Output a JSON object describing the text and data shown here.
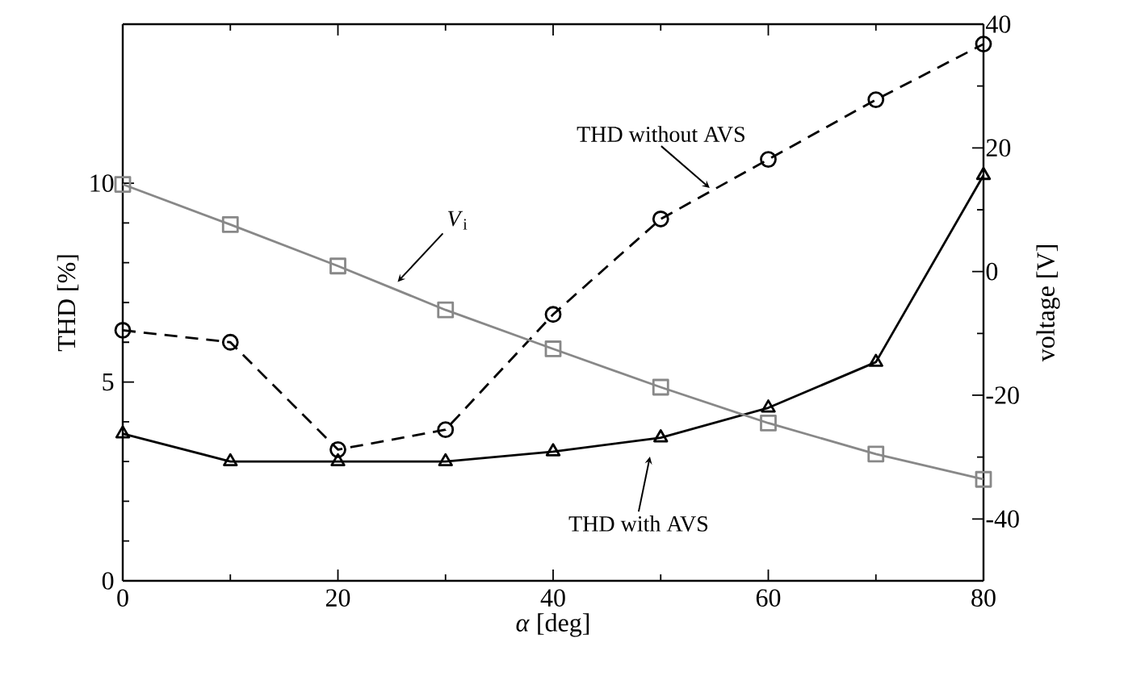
{
  "chart_data": {
    "type": "line",
    "xlabel": "*α* [deg]",
    "ylabel": "THD [%]",
    "y2label": "voltage [V]",
    "x": [
      0,
      10,
      20,
      30,
      40,
      50,
      60,
      70,
      80
    ],
    "xlim": [
      0,
      80
    ],
    "xticks": [
      0,
      20,
      40,
      60,
      80
    ],
    "ylim": [
      0,
      14
    ],
    "yticks": [
      0,
      5,
      10
    ],
    "y2lim": [
      -50,
      40
    ],
    "y2ticks": [
      -40,
      -20,
      0,
      20,
      40
    ],
    "grid": false,
    "series": [
      {
        "color": "#000000",
        "marker": "circle",
        "line_style": "dashed",
        "values": [
          6.3,
          6.0,
          3.3,
          3.8,
          6.7,
          9.1,
          10.6,
          12.1,
          13.5
        ]
      },
      {
        "color": "#000000",
        "marker": "triangle",
        "line_style": "solid",
        "values": [
          3.7,
          3.0,
          3.0,
          3.0,
          3.25,
          3.6,
          4.35,
          5.5,
          10.2
        ]
      },
      {
        "color": "#888888",
        "marker": "square",
        "line_style": "solid",
        "axis": "y2",
        "values": [
          14.1,
          7.6,
          0.9,
          -6.2,
          -12.5,
          -18.7,
          -24.5,
          -29.5,
          -33.6
        ]
      }
    ],
    "annotations": [
      {
        "text": "THD without AVS",
        "x": 55,
        "y": 10.0
      },
      {
        "text": "THD with AVS",
        "x": 49,
        "y": 3.0
      },
      {
        "text": "*V*$_{i}$",
        "x": 26,
        "y": 7.6
      }
    ]
  }
}
